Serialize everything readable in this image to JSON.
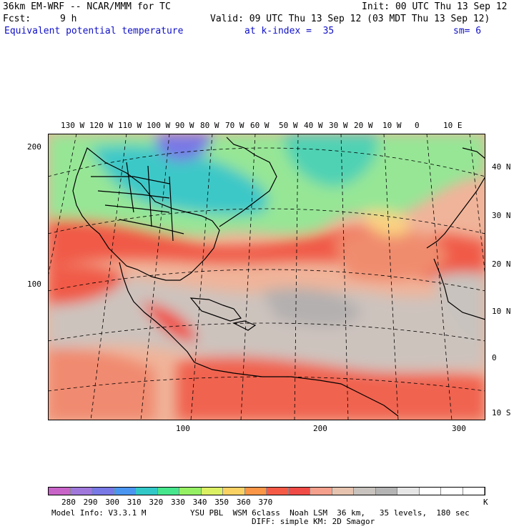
{
  "header": {
    "model": "36km EM-WRF -- NCAR/MMM for TC",
    "init": "Init: 00 UTC Thu 13 Sep 12",
    "fcst_label": "Fcst:",
    "fcst_value": "9 h",
    "valid": "Valid: 09 UTC Thu 13 Sep 12 (03 MDT Thu 13 Sep 12)",
    "field": "Equivalent potential temperature",
    "kindex": "at k-index =  35",
    "sm": "sm= 6"
  },
  "map": {
    "top_lon_labels": [
      "130 W",
      "120 W",
      "110 W",
      "100 W",
      "90 W",
      "80 W",
      "70 W",
      "60 W",
      "50 W",
      "40 W",
      "30 W",
      "20 W",
      "10 W",
      "0",
      "10 E"
    ],
    "right_lat_labels": [
      "40 N",
      "30 N",
      "20 N",
      "10 N",
      "0",
      "10 S"
    ],
    "left_grid_labels": [
      "200",
      "100"
    ],
    "bottom_grid_labels": [
      "100",
      "200",
      "300"
    ]
  },
  "colorbar": {
    "labels": [
      "280",
      "290",
      "300",
      "310",
      "320",
      "330",
      "340",
      "350",
      "360",
      "370"
    ],
    "unit": "K",
    "colors": [
      "#c864c8",
      "#a078dc",
      "#7878e6",
      "#4b96f0",
      "#32c8c8",
      "#46e68c",
      "#96f064",
      "#dcf064",
      "#fad264",
      "#fa9646",
      "#f55a46",
      "#f04b46",
      "#f5a08c",
      "#e6c3af",
      "#c8c3be",
      "#b4b4b4",
      "#e6e6e6",
      "#ffffff",
      "#ffffff",
      "#ffffff"
    ]
  },
  "footer": {
    "model_info": "Model Info: V3.3.1 M",
    "physics": "YSU PBL  WSM 6class  Noah LSM  36 km,   35 levels,  180 sec",
    "diff": "DIFF: simple KM: 2D Smagor"
  }
}
